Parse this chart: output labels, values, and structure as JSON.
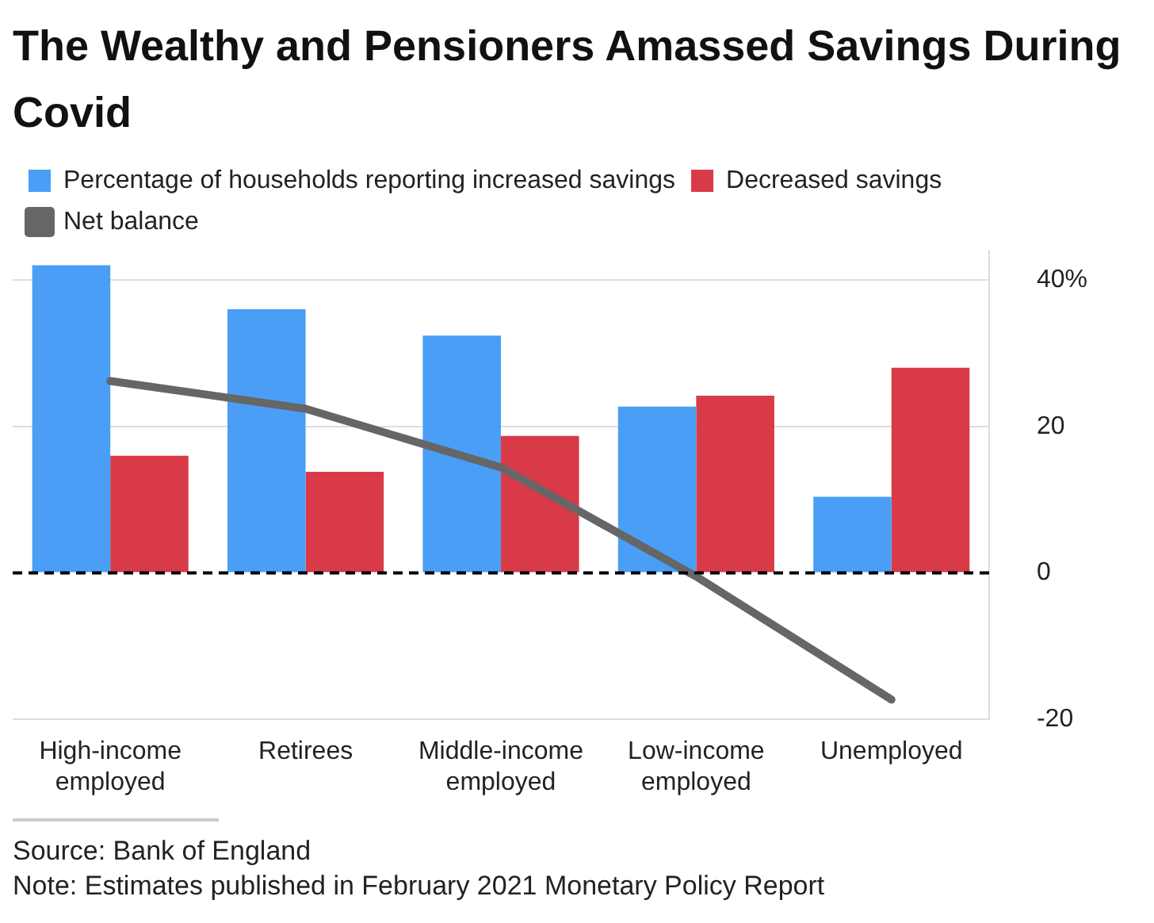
{
  "chart_data": {
    "type": "bar",
    "title": "The Wealthy and Pensioners Amassed Savings During Covid",
    "categories": [
      "High-income employed",
      "Retirees",
      "Middle-income employed",
      "Low-income employed",
      "Unemployed"
    ],
    "series": [
      {
        "name": "Percentage of households reporting increased savings",
        "color": "#4a9ef5",
        "values": [
          42,
          36,
          32.4,
          22.7,
          10.4
        ]
      },
      {
        "name": "Decreased savings",
        "color": "#d93a48",
        "values": [
          16,
          13.8,
          18.7,
          24.2,
          28
        ]
      },
      {
        "name": "Net balance",
        "type": "line",
        "color": "#666666",
        "marker": "none",
        "line_style": "solid",
        "values": [
          26.2,
          22.4,
          14.4,
          -0.5,
          -17.3
        ]
      }
    ],
    "ylim": [
      -20,
      44
    ],
    "yticks": [
      -20,
      0,
      20,
      {
        "value": 40,
        "label": "40%"
      }
    ],
    "grid": "y",
    "legend": "top left",
    "ref_lines": [
      {
        "axis": "y",
        "value": 0,
        "color": "#000000",
        "line_style": "dashed"
      }
    ],
    "annotations": [
      "Source: Bank of England",
      "Note: Estimates published in February 2021 Monetary Policy Report"
    ]
  }
}
